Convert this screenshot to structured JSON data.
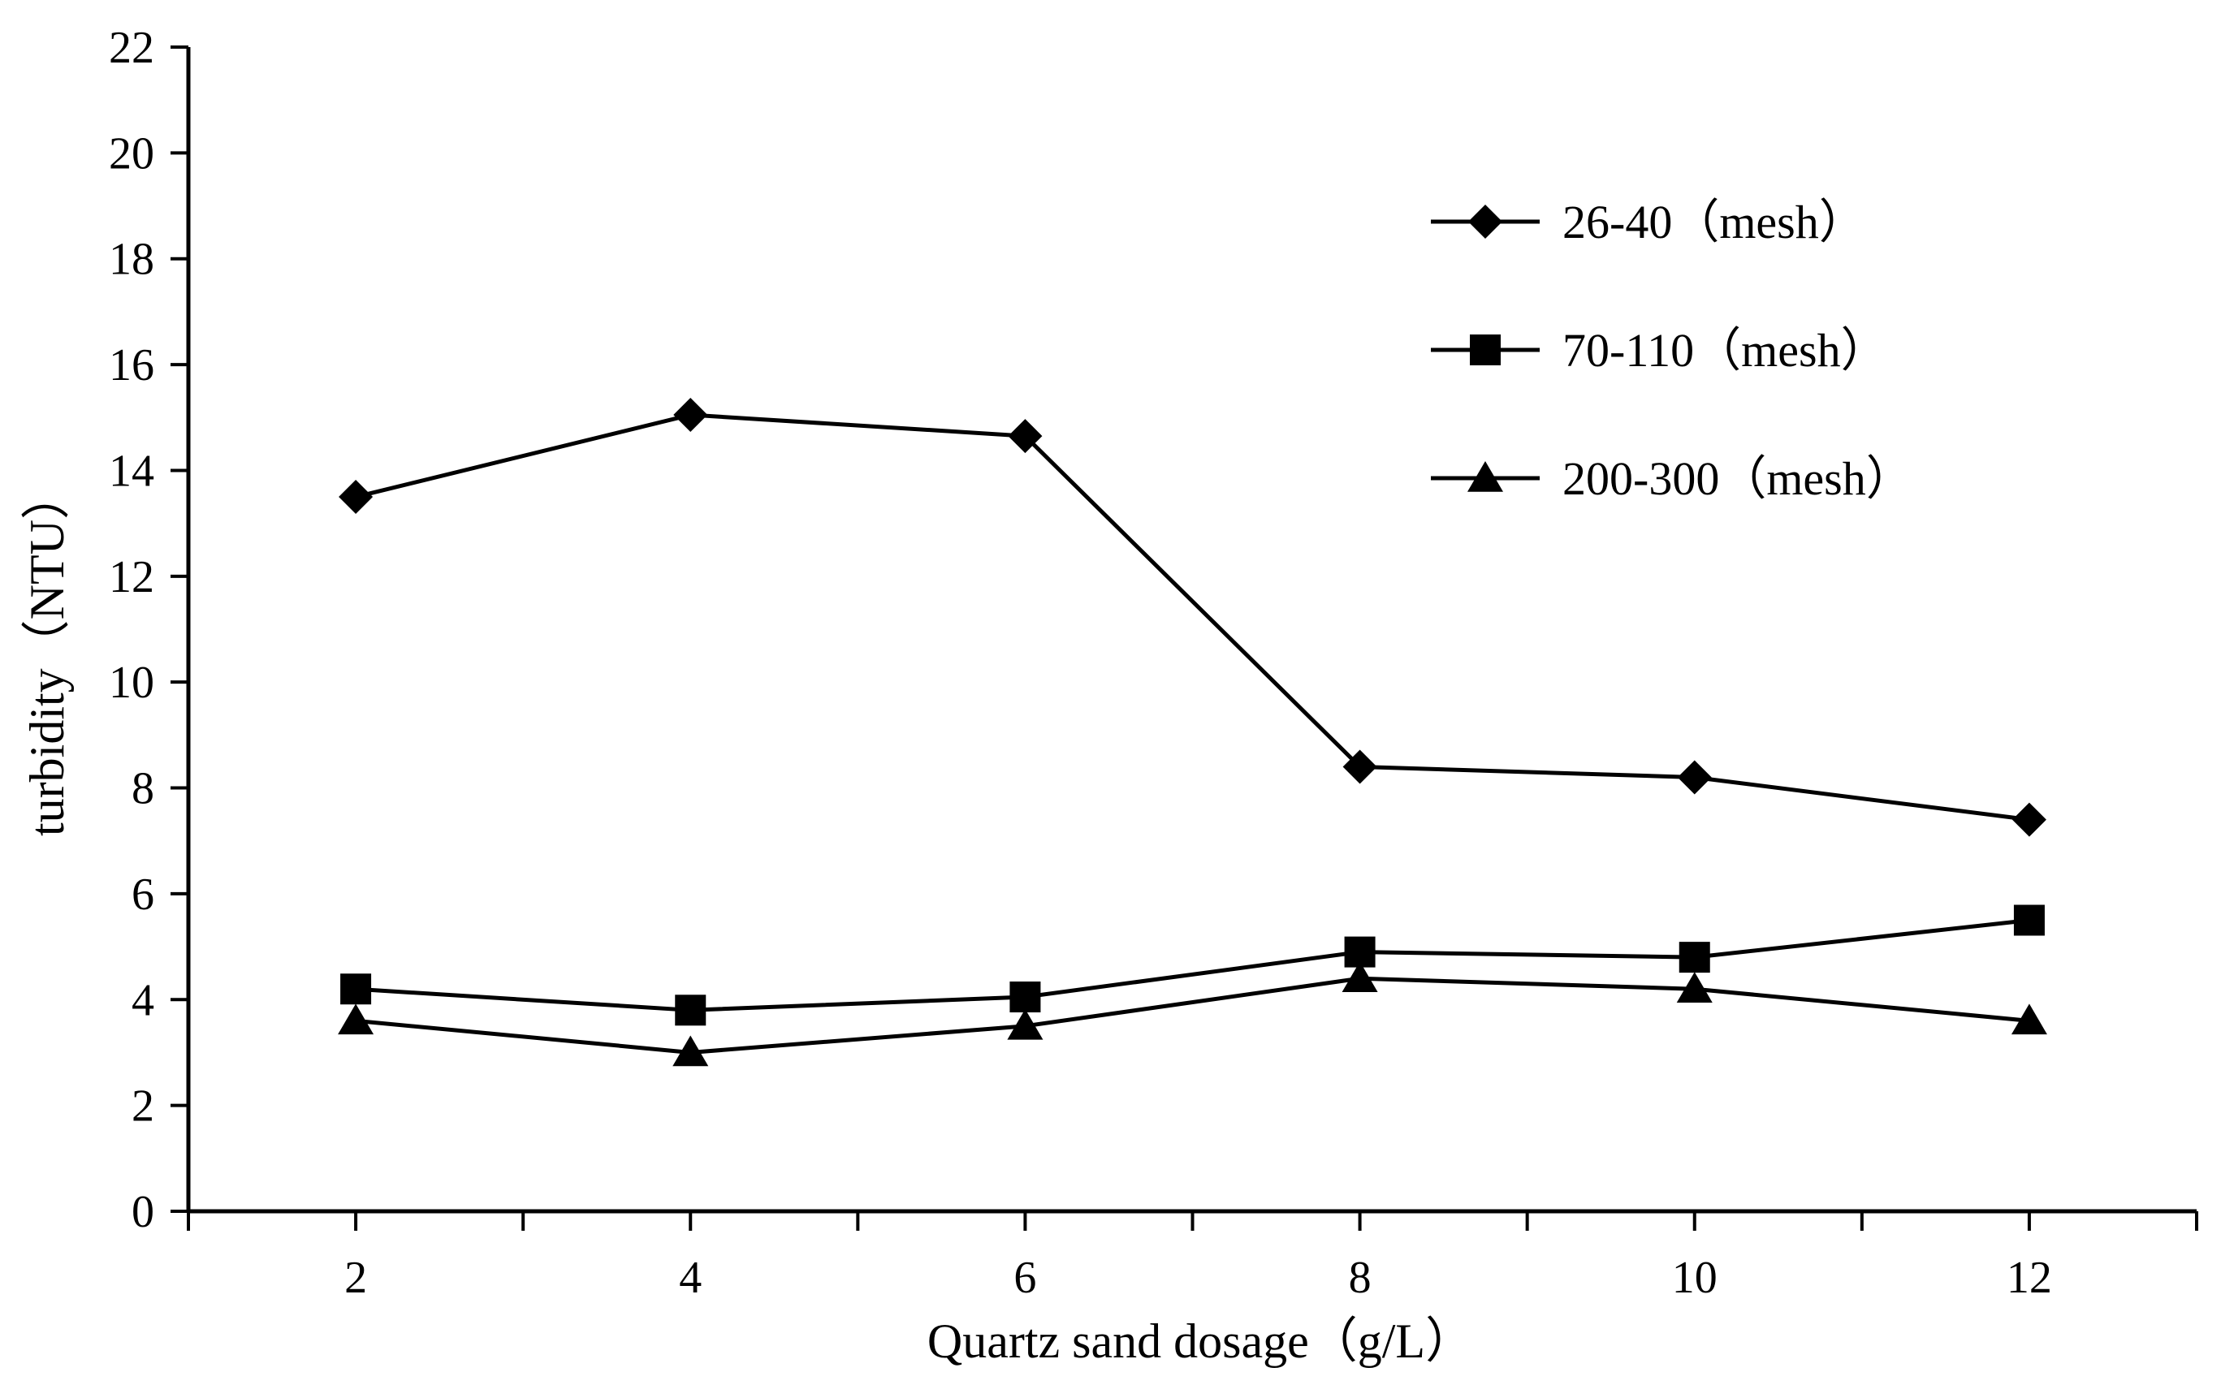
{
  "chart_data": {
    "type": "line",
    "xlabel": "Quartz sand dosage（g/L）",
    "ylabel": "turbidity（NTU）",
    "x": [
      2,
      4,
      6,
      8,
      10,
      12
    ],
    "xlim": [
      1,
      13
    ],
    "ylim": [
      0,
      22
    ],
    "xticks": [
      "2",
      "4",
      "6",
      "8",
      "10",
      "12"
    ],
    "yticks": [
      "0",
      "2",
      "4",
      "6",
      "8",
      "10",
      "12",
      "14",
      "16",
      "18",
      "20",
      "22"
    ],
    "grid": false,
    "legend_position": "top-right",
    "series": [
      {
        "name": "26-40（mesh）",
        "marker": "diamond",
        "color": "#000000",
        "values": [
          13.5,
          15.05,
          14.65,
          8.4,
          8.2,
          7.4
        ]
      },
      {
        "name": "70-110（mesh）",
        "marker": "square",
        "color": "#000000",
        "values": [
          4.2,
          3.8,
          4.05,
          4.9,
          4.8,
          5.5
        ]
      },
      {
        "name": "200-300（mesh）",
        "marker": "triangle",
        "color": "#000000",
        "values": [
          3.6,
          3.0,
          3.5,
          4.4,
          4.2,
          3.6
        ]
      }
    ]
  }
}
